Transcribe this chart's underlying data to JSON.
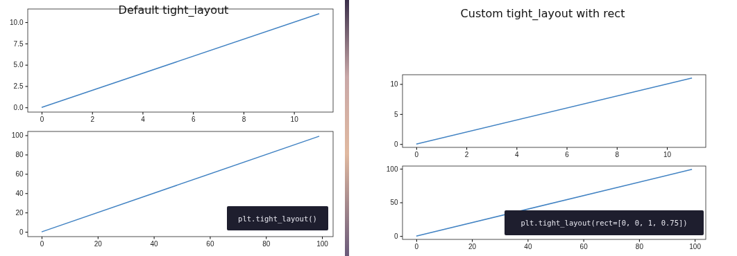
{
  "chart_data": [
    {
      "type": "line",
      "title": "Default tight_layout",
      "x": [
        0,
        11
      ],
      "series": [
        {
          "color": "#4283c3",
          "values": [
            0,
            11
          ]
        }
      ],
      "xlim": [
        -0.55,
        11.55
      ],
      "ylim": [
        -0.55,
        11.55
      ],
      "xticks": [
        0,
        2,
        4,
        6,
        8,
        10
      ],
      "yticks": [
        {
          "value": 0,
          "label": "0.0"
        },
        2.5,
        {
          "value": 5,
          "label": "5.0"
        },
        7.5,
        {
          "value": 10,
          "label": "10.0"
        }
      ],
      "grid": false,
      "marker": "none",
      "line_style": "solid"
    },
    {
      "type": "line",
      "x": [
        0,
        99
      ],
      "series": [
        {
          "color": "#4283c3",
          "values": [
            0,
            99
          ]
        }
      ],
      "xlim": [
        -4.95,
        103.95
      ],
      "ylim": [
        -4.95,
        103.95
      ],
      "xticks": [
        0,
        20,
        40,
        60,
        80,
        100
      ],
      "yticks": [
        0,
        20,
        40,
        60,
        80,
        100
      ],
      "grid": false,
      "marker": "none",
      "line_style": "solid",
      "annotations": [
        "plt.tight_layout()"
      ]
    },
    {
      "type": "line",
      "title": "Custom tight_layout with rect",
      "x": [
        0,
        11
      ],
      "series": [
        {
          "color": "#4283c3",
          "values": [
            0,
            11
          ]
        }
      ],
      "xlim": [
        -0.55,
        11.55
      ],
      "ylim": [
        -0.55,
        11.55
      ],
      "xticks": [
        0,
        2,
        4,
        6,
        8,
        10
      ],
      "yticks": [
        0,
        5,
        10
      ],
      "grid": false,
      "marker": "none",
      "line_style": "solid"
    },
    {
      "type": "line",
      "x": [
        0,
        99
      ],
      "series": [
        {
          "color": "#4283c3",
          "values": [
            0,
            99
          ]
        }
      ],
      "xlim": [
        -4.95,
        103.95
      ],
      "ylim": [
        -4.95,
        103.95
      ],
      "xticks": [
        0,
        20,
        40,
        60,
        80,
        100
      ],
      "yticks": [
        0,
        50,
        100
      ],
      "grid": false,
      "marker": "none",
      "line_style": "solid",
      "annotations": [
        "plt.tight_layout(rect=[0, 0, 1, 0.75])"
      ]
    }
  ]
}
